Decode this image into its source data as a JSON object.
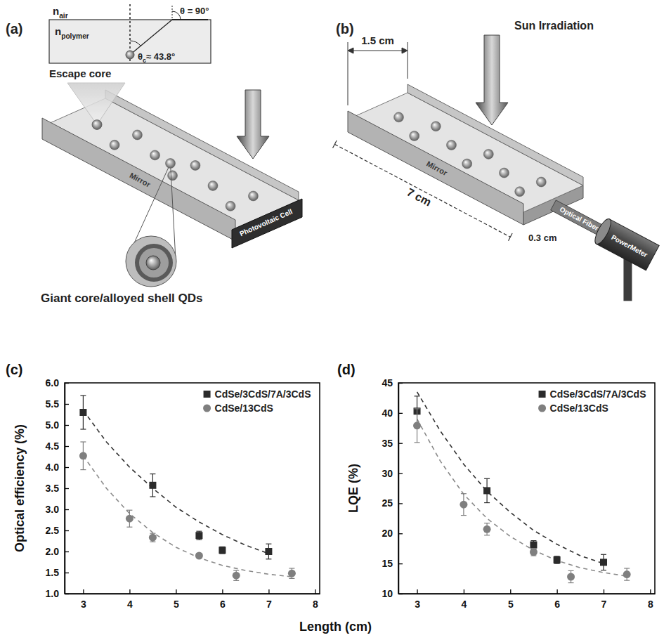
{
  "chart_data": [
    {
      "type": "scatter",
      "panel": "(c)",
      "y_label": "Optical efficiency (%)",
      "xlim": [
        2.6,
        8.1
      ],
      "xticks": [
        3,
        4,
        5,
        6,
        7,
        8
      ],
      "ylim": [
        1,
        6
      ],
      "yticks": [
        {
          "value": 1,
          "label": "1.0"
        },
        1.5,
        {
          "value": 2,
          "label": "2.0"
        },
        2.5,
        {
          "value": 3,
          "label": "3.0"
        },
        3.5,
        {
          "value": 4,
          "label": "4.0"
        },
        4.5,
        {
          "value": 5,
          "label": "5.0"
        },
        5.5,
        {
          "value": 6,
          "label": "6.0"
        }
      ],
      "legend": "top-right",
      "series": [
        {
          "type": "line",
          "line_style": "dashed",
          "color": "#333333",
          "x": [
            3,
            3.5,
            4,
            4.5,
            5,
            5.5,
            6,
            6.5,
            7
          ],
          "values": [
            5.35,
            4.6,
            4.0,
            3.5,
            3.05,
            2.7,
            2.4,
            2.15,
            1.95
          ]
        },
        {
          "type": "line",
          "line_style": "dashed",
          "color": "#8a8a8a",
          "x": [
            3,
            3.5,
            4,
            4.5,
            5,
            5.5,
            6,
            6.5,
            7,
            7.5
          ],
          "values": [
            4.27,
            3.5,
            2.9,
            2.45,
            2.1,
            1.85,
            1.67,
            1.55,
            1.46,
            1.4
          ]
        },
        {
          "name": "CdSe/3CdS/7A/3CdS",
          "type": "scatter",
          "marker": "square",
          "color": "#2b2b2b",
          "x": [
            3,
            4.5,
            5.5,
            6,
            7
          ],
          "values": [
            5.3,
            3.57,
            2.38,
            2.03,
            2.0
          ],
          "error": [
            0.4,
            0.27,
            0.1,
            0.08,
            0.18
          ]
        },
        {
          "name": "CdSe/13CdS",
          "type": "scatter",
          "marker": "circle",
          "color": "#7f7f7f",
          "x": [
            3,
            4,
            4.5,
            5.5,
            6.3,
            7.5
          ],
          "values": [
            4.27,
            2.78,
            2.33,
            1.9,
            1.43,
            1.48
          ],
          "error": [
            0.33,
            0.2,
            0.1,
            0.05,
            0.12,
            0.12
          ]
        }
      ]
    },
    {
      "type": "scatter",
      "panel": "(d)",
      "y_label": "LQE (%)",
      "xlim": [
        2.6,
        8.1
      ],
      "xticks": [
        3,
        4,
        5,
        6,
        7,
        8
      ],
      "ylim": [
        10,
        45
      ],
      "yticks": [
        10,
        15,
        20,
        25,
        30,
        35,
        40,
        45
      ],
      "legend": "top-right",
      "series": [
        {
          "type": "line",
          "line_style": "dashed",
          "color": "#333333",
          "x": [
            3,
            3.5,
            4,
            4.5,
            5,
            5.5,
            6,
            6.5,
            7
          ],
          "values": [
            43.5,
            37,
            31.5,
            27,
            23.5,
            20.5,
            18.2,
            16.3,
            15.0
          ]
        },
        {
          "type": "line",
          "line_style": "dashed",
          "color": "#8a8a8a",
          "x": [
            3,
            3.5,
            4,
            4.5,
            5,
            5.5,
            6,
            6.5,
            7,
            7.5
          ],
          "values": [
            39,
            32,
            26.5,
            22.5,
            19.5,
            17.2,
            15.5,
            14.3,
            13.5,
            12.9
          ]
        },
        {
          "name": "CdSe/3CdS/7A/3CdS",
          "type": "scatter",
          "marker": "square",
          "color": "#2b2b2b",
          "x": [
            3,
            4.5,
            5.5,
            6,
            7
          ],
          "values": [
            40.3,
            27.1,
            18.1,
            15.6,
            15.2
          ],
          "error": [
            2.5,
            2.0,
            0.7,
            0.6,
            1.3
          ]
        },
        {
          "name": "CdSe/13CdS",
          "type": "scatter",
          "marker": "circle",
          "color": "#7f7f7f",
          "x": [
            3,
            4,
            4.5,
            5.5,
            6.3,
            7.5
          ],
          "values": [
            37.9,
            24.8,
            20.7,
            16.9,
            12.8,
            13.2
          ],
          "error": [
            2.8,
            1.8,
            1.0,
            0.6,
            1.0,
            1.0
          ]
        }
      ]
    }
  ],
  "shared_x_label": "Length (cm)",
  "diagrams": {
    "a": {
      "letter": "(a)",
      "n_air": {
        "base": "n",
        "sub": "air"
      },
      "n_polymer": {
        "base": "n",
        "sub": "polymer"
      },
      "theta": "θ = 90°",
      "theta_c": {
        "base": "θ",
        "sub": "c",
        "rest": "≈ 43.8°"
      },
      "escape_core": "Escape core",
      "mirror": "Mirror",
      "pv_cell": "Photovoltaic Cell",
      "qd_label": "Giant core/alloyed shell QDs"
    },
    "b": {
      "letter": "(b)",
      "width": "1.5 cm",
      "sun": "Sun Irradiation",
      "mirror": "Mirror",
      "thickness": "0.3 cm",
      "length": "7 cm",
      "fiber": "Optical Fiber",
      "meter": "PowerMeter"
    }
  }
}
